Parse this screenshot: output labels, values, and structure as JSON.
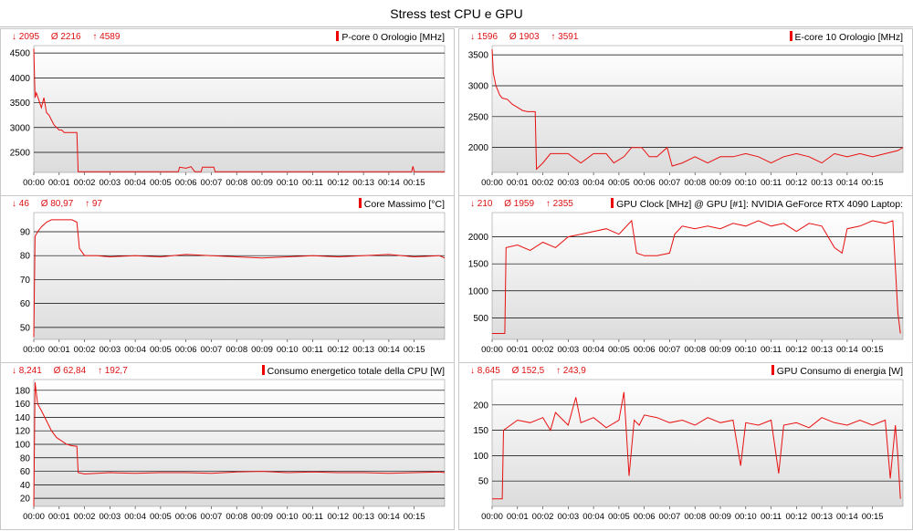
{
  "title": "Stress test CPU e GPU",
  "colors": {
    "line": "#e81010",
    "plot_bg_top": "#ffffff",
    "plot_bg_bottom": "#dcdcdc",
    "grid": "#000000"
  },
  "x_ticks": [
    "00:00",
    "00:01",
    "00:02",
    "00:03",
    "00:04",
    "00:05",
    "00:06",
    "00:07",
    "00:08",
    "00:09",
    "00:10",
    "00:11",
    "00:12",
    "00:13",
    "00:14",
    "00:15"
  ],
  "chart_data": [
    {
      "type": "line",
      "title": "P-core 0 Orologio [MHz]",
      "stats": {
        "min": "↓ 2095",
        "avg": "Ø 2216",
        "max": "↑ 4589"
      },
      "y_ticks": [
        2500,
        3000,
        3500,
        4000,
        4500
      ],
      "ylim": [
        2095,
        4650
      ],
      "x_range": [
        0,
        16.2
      ],
      "grid": true,
      "series": [
        {
          "points": [
            [
              0,
              4589
            ],
            [
              0.05,
              3600
            ],
            [
              0.1,
              3700
            ],
            [
              0.2,
              3550
            ],
            [
              0.3,
              3400
            ],
            [
              0.4,
              3600
            ],
            [
              0.5,
              3300
            ],
            [
              0.6,
              3250
            ],
            [
              0.7,
              3150
            ],
            [
              0.8,
              3050
            ],
            [
              0.9,
              3000
            ],
            [
              1.0,
              2950
            ],
            [
              1.1,
              2950
            ],
            [
              1.2,
              2900
            ],
            [
              1.35,
              2900
            ],
            [
              1.7,
              2900
            ],
            [
              1.75,
              2110
            ],
            [
              5.7,
              2110
            ],
            [
              5.75,
              2200
            ],
            [
              6.0,
              2180
            ],
            [
              6.2,
              2210
            ],
            [
              6.35,
              2110
            ],
            [
              6.6,
              2110
            ],
            [
              6.65,
              2200
            ],
            [
              7.1,
              2200
            ],
            [
              7.15,
              2110
            ],
            [
              14.9,
              2110
            ],
            [
              14.95,
              2220
            ],
            [
              15.0,
              2110
            ],
            [
              16.2,
              2110
            ]
          ]
        }
      ]
    },
    {
      "type": "line",
      "title": "E-core 10 Orologio [MHz]",
      "stats": {
        "min": "↓ 1596",
        "avg": "Ø 1903",
        "max": "↑ 3591"
      },
      "y_ticks": [
        2000,
        2500,
        3000,
        3500
      ],
      "ylim": [
        1596,
        3650
      ],
      "x_range": [
        0,
        16.2
      ],
      "grid": true,
      "series": [
        {
          "points": [
            [
              0,
              3591
            ],
            [
              0.05,
              3200
            ],
            [
              0.15,
              3000
            ],
            [
              0.3,
              2850
            ],
            [
              0.4,
              2800
            ],
            [
              0.6,
              2780
            ],
            [
              0.8,
              2700
            ],
            [
              1.0,
              2650
            ],
            [
              1.2,
              2600
            ],
            [
              1.4,
              2580
            ],
            [
              1.6,
              2580
            ],
            [
              1.7,
              2580
            ],
            [
              1.75,
              1650
            ],
            [
              2.0,
              1750
            ],
            [
              2.3,
              1900
            ],
            [
              3.0,
              1900
            ],
            [
              3.5,
              1750
            ],
            [
              4.0,
              1900
            ],
            [
              4.5,
              1900
            ],
            [
              4.8,
              1750
            ],
            [
              5.2,
              1850
            ],
            [
              5.5,
              2000
            ],
            [
              5.9,
              2000
            ],
            [
              6.2,
              1850
            ],
            [
              6.5,
              1850
            ],
            [
              6.9,
              2000
            ],
            [
              7.1,
              1700
            ],
            [
              7.5,
              1750
            ],
            [
              8.0,
              1850
            ],
            [
              8.5,
              1750
            ],
            [
              9.0,
              1850
            ],
            [
              9.5,
              1850
            ],
            [
              10.0,
              1900
            ],
            [
              10.5,
              1850
            ],
            [
              11.0,
              1750
            ],
            [
              11.5,
              1850
            ],
            [
              12.0,
              1900
            ],
            [
              12.5,
              1850
            ],
            [
              13.0,
              1750
            ],
            [
              13.5,
              1900
            ],
            [
              14.0,
              1850
            ],
            [
              14.5,
              1900
            ],
            [
              15.0,
              1850
            ],
            [
              15.5,
              1900
            ],
            [
              16.0,
              1950
            ],
            [
              16.2,
              2000
            ]
          ]
        }
      ]
    },
    {
      "type": "line",
      "title": "Core Massimo [°C]",
      "stats": {
        "min": "↓ 46",
        "avg": "Ø 80,97",
        "max": "↑ 97"
      },
      "y_ticks": [
        50,
        60,
        70,
        80,
        90
      ],
      "ylim": [
        45,
        98
      ],
      "x_range": [
        0,
        16.2
      ],
      "grid": true,
      "series": [
        {
          "points": [
            [
              0,
              46
            ],
            [
              0.05,
              88
            ],
            [
              0.15,
              90
            ],
            [
              0.3,
              92
            ],
            [
              0.5,
              94
            ],
            [
              0.7,
              95
            ],
            [
              1.0,
              95
            ],
            [
              1.3,
              95
            ],
            [
              1.5,
              95
            ],
            [
              1.7,
              94
            ],
            [
              1.8,
              83
            ],
            [
              2.0,
              80
            ],
            [
              2.5,
              80
            ],
            [
              3.0,
              79.5
            ],
            [
              4.0,
              80
            ],
            [
              5.0,
              79.5
            ],
            [
              6.0,
              80.5
            ],
            [
              7.0,
              80
            ],
            [
              8.0,
              79.5
            ],
            [
              9.0,
              79
            ],
            [
              10.0,
              79.5
            ],
            [
              11.0,
              80
            ],
            [
              12.0,
              79.5
            ],
            [
              13.0,
              80
            ],
            [
              14.0,
              80.5
            ],
            [
              15.0,
              79.5
            ],
            [
              16.0,
              80
            ],
            [
              16.2,
              79
            ]
          ]
        }
      ]
    },
    {
      "type": "line",
      "title": "GPU Clock [MHz] @ GPU [#1]: NVIDIA GeForce RTX 4090 Laptop:",
      "stats": {
        "min": "↓ 210",
        "avg": "Ø 1959",
        "max": "↑ 2355"
      },
      "y_ticks": [
        500,
        1000,
        1500,
        2000
      ],
      "ylim": [
        100,
        2450
      ],
      "x_range": [
        0,
        16.2
      ],
      "grid": true,
      "series": [
        {
          "points": [
            [
              0,
              210
            ],
            [
              0.5,
              210
            ],
            [
              0.55,
              1800
            ],
            [
              1.0,
              1850
            ],
            [
              1.5,
              1750
            ],
            [
              2.0,
              1900
            ],
            [
              2.5,
              1800
            ],
            [
              3.0,
              2000
            ],
            [
              3.5,
              2050
            ],
            [
              4.0,
              2100
            ],
            [
              4.5,
              2150
            ],
            [
              5.0,
              2050
            ],
            [
              5.5,
              2300
            ],
            [
              5.7,
              1700
            ],
            [
              6.0,
              1650
            ],
            [
              6.5,
              1650
            ],
            [
              7.0,
              1700
            ],
            [
              7.2,
              2050
            ],
            [
              7.5,
              2200
            ],
            [
              8.0,
              2150
            ],
            [
              8.5,
              2200
            ],
            [
              9.0,
              2150
            ],
            [
              9.5,
              2250
            ],
            [
              10.0,
              2200
            ],
            [
              10.5,
              2300
            ],
            [
              11.0,
              2200
            ],
            [
              11.5,
              2250
            ],
            [
              12.0,
              2100
            ],
            [
              12.5,
              2250
            ],
            [
              13.0,
              2200
            ],
            [
              13.5,
              1800
            ],
            [
              13.8,
              1700
            ],
            [
              14.0,
              2150
            ],
            [
              14.5,
              2200
            ],
            [
              15.0,
              2300
            ],
            [
              15.5,
              2250
            ],
            [
              15.8,
              2300
            ],
            [
              16.0,
              600
            ],
            [
              16.1,
              210
            ]
          ]
        }
      ]
    },
    {
      "type": "line",
      "title": "Consumo energetico totale della CPU [W]",
      "stats": {
        "min": "↓ 8,241",
        "avg": "Ø 62,84",
        "max": "↑ 192,7"
      },
      "y_ticks": [
        20,
        40,
        60,
        80,
        100,
        120,
        140,
        160,
        180
      ],
      "ylim": [
        8,
        196
      ],
      "x_range": [
        0,
        16.2
      ],
      "grid": true,
      "series": [
        {
          "points": [
            [
              0,
              8.2
            ],
            [
              0.05,
              192
            ],
            [
              0.15,
              160
            ],
            [
              0.3,
              150
            ],
            [
              0.5,
              135
            ],
            [
              0.7,
              120
            ],
            [
              0.9,
              110
            ],
            [
              1.1,
              105
            ],
            [
              1.3,
              100
            ],
            [
              1.5,
              98
            ],
            [
              1.7,
              97
            ],
            [
              1.75,
              58
            ],
            [
              2.0,
              56
            ],
            [
              3.0,
              58
            ],
            [
              4.0,
              57
            ],
            [
              5.0,
              58
            ],
            [
              6.0,
              58
            ],
            [
              7.0,
              57
            ],
            [
              8.0,
              59
            ],
            [
              9.0,
              60
            ],
            [
              10.0,
              58
            ],
            [
              11.0,
              59
            ],
            [
              12.0,
              58
            ],
            [
              13.0,
              58
            ],
            [
              14.0,
              57
            ],
            [
              15.0,
              58
            ],
            [
              16.0,
              59
            ],
            [
              16.2,
              58
            ]
          ]
        }
      ]
    },
    {
      "type": "line",
      "title": "GPU Consumo di energia [W]",
      "stats": {
        "min": "↓ 8,645",
        "avg": "Ø 152,5",
        "max": "↑ 243,9"
      },
      "y_ticks": [
        50,
        100,
        150,
        200
      ],
      "ylim": [
        0,
        250
      ],
      "x_range": [
        0,
        16.2
      ],
      "grid": true,
      "series": [
        {
          "points": [
            [
              0,
              15
            ],
            [
              0.4,
              15
            ],
            [
              0.45,
              150
            ],
            [
              1.0,
              170
            ],
            [
              1.5,
              165
            ],
            [
              2.0,
              175
            ],
            [
              2.3,
              150
            ],
            [
              2.5,
              185
            ],
            [
              3.0,
              160
            ],
            [
              3.3,
              215
            ],
            [
              3.5,
              165
            ],
            [
              4.0,
              175
            ],
            [
              4.5,
              155
            ],
            [
              5.0,
              170
            ],
            [
              5.2,
              225
            ],
            [
              5.4,
              60
            ],
            [
              5.6,
              170
            ],
            [
              5.8,
              160
            ],
            [
              6.0,
              180
            ],
            [
              6.5,
              175
            ],
            [
              7.0,
              165
            ],
            [
              7.5,
              170
            ],
            [
              8.0,
              160
            ],
            [
              8.5,
              175
            ],
            [
              9.0,
              165
            ],
            [
              9.5,
              170
            ],
            [
              9.8,
              80
            ],
            [
              10.0,
              165
            ],
            [
              10.5,
              160
            ],
            [
              11.0,
              170
            ],
            [
              11.3,
              65
            ],
            [
              11.5,
              160
            ],
            [
              12.0,
              165
            ],
            [
              12.5,
              155
            ],
            [
              13.0,
              175
            ],
            [
              13.5,
              165
            ],
            [
              14.0,
              160
            ],
            [
              14.5,
              170
            ],
            [
              15.0,
              160
            ],
            [
              15.5,
              170
            ],
            [
              15.7,
              55
            ],
            [
              15.9,
              160
            ],
            [
              16.0,
              100
            ],
            [
              16.1,
              15
            ]
          ]
        }
      ]
    }
  ]
}
